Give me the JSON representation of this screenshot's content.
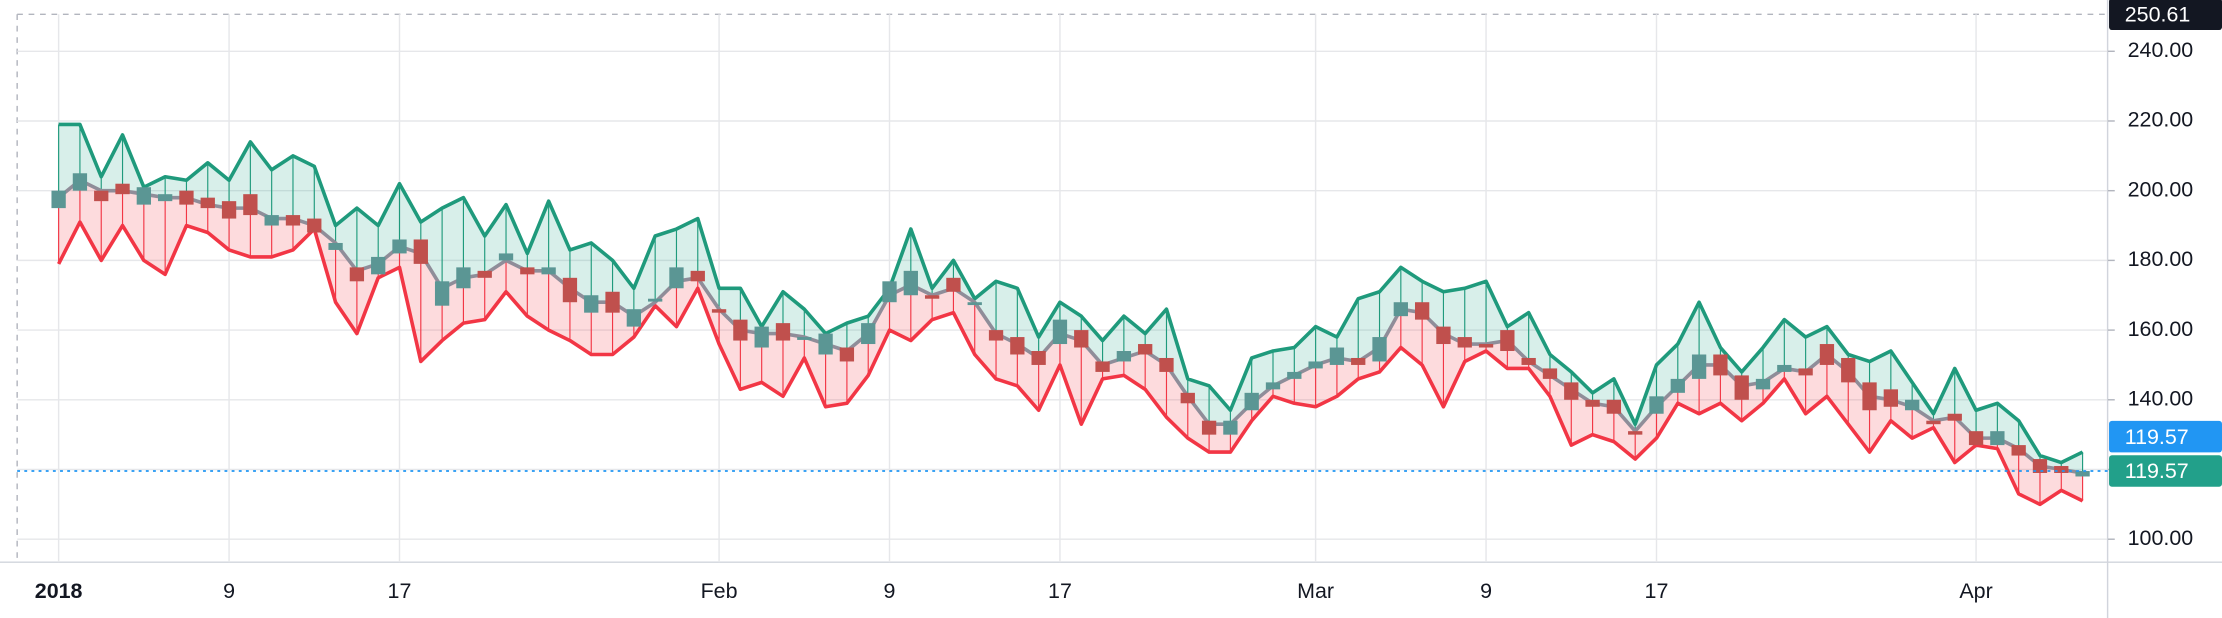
{
  "chart_data": {
    "type": "candlestick",
    "categories": [
      "2018",
      null,
      null,
      null,
      null,
      null,
      null,
      null,
      "9",
      null,
      null,
      null,
      null,
      null,
      null,
      null,
      "17",
      null,
      null,
      null,
      null,
      null,
      null,
      null,
      null,
      null,
      null,
      null,
      null,
      null,
      null,
      "Feb",
      null,
      null,
      null,
      null,
      null,
      null,
      null,
      "9",
      null,
      null,
      null,
      null,
      null,
      null,
      null,
      "17",
      null,
      null,
      null,
      null,
      null,
      null,
      null,
      null,
      null,
      null,
      null,
      "Mar",
      null,
      null,
      null,
      null,
      null,
      null,
      null,
      "9",
      null,
      null,
      null,
      null,
      null,
      null,
      null,
      "17",
      null,
      null,
      null,
      null,
      null,
      null,
      null,
      null,
      null,
      null,
      null,
      null,
      null,
      null,
      "Apr",
      null,
      null,
      null,
      null,
      null
    ],
    "open": [
      195,
      200,
      200,
      202,
      196,
      197,
      200,
      198,
      197,
      199,
      190,
      193,
      192,
      183,
      178,
      176,
      182,
      186,
      167,
      172,
      177,
      180,
      178,
      176,
      175,
      165,
      171,
      161,
      169,
      172,
      177,
      166,
      163,
      155,
      162,
      158,
      153,
      155,
      156,
      168,
      170,
      170,
      175,
      168,
      160,
      158,
      154,
      156,
      160,
      151,
      151,
      156,
      152,
      142,
      134,
      130,
      137,
      143,
      146,
      149,
      150,
      152,
      151,
      164,
      168,
      161,
      158,
      156,
      160,
      152,
      149,
      145,
      140,
      140,
      131,
      136,
      142,
      146,
      153,
      147,
      143,
      148,
      149,
      156,
      152,
      145,
      143,
      137,
      134,
      136,
      131,
      127,
      127,
      123,
      121,
      118
    ],
    "close": [
      200,
      205,
      197,
      199,
      201,
      199,
      196,
      195,
      192,
      193,
      193,
      190,
      188,
      185,
      174,
      181,
      186,
      179,
      174,
      178,
      175,
      182,
      176,
      178,
      168,
      170,
      165,
      166,
      169,
      178,
      174,
      165,
      157,
      161,
      157,
      158,
      159,
      151,
      162,
      174,
      177,
      169,
      171,
      168,
      157,
      153,
      150,
      163,
      155,
      148,
      154,
      153,
      148,
      139,
      130,
      134,
      142,
      145,
      148,
      151,
      155,
      150,
      158,
      168,
      163,
      156,
      155,
      155,
      154,
      150,
      146,
      140,
      138,
      136,
      130,
      141,
      146,
      153,
      147,
      140,
      146,
      150,
      147,
      150,
      145,
      137,
      138,
      140,
      133,
      134,
      127,
      131,
      124,
      119,
      119,
      119.57
    ],
    "up_color": "#5b9694",
    "down_color": "#c0504d",
    "series": [
      {
        "color": "#1f9a7c",
        "fill": "rgba(38,166,140,0.18)",
        "values": [
          219,
          219,
          204,
          216,
          201,
          204,
          203,
          208,
          203,
          214,
          206,
          210,
          207,
          190,
          195,
          190,
          202,
          191,
          195,
          198,
          187,
          196,
          182,
          197,
          183,
          185,
          180,
          172,
          187,
          189,
          192,
          172,
          172,
          161,
          171,
          166,
          159,
          162,
          164,
          172,
          189,
          172,
          180,
          169,
          174,
          172,
          158,
          168,
          164,
          157,
          164,
          159,
          166,
          146,
          144,
          137,
          152,
          154,
          155,
          161,
          158,
          169,
          171,
          178,
          174,
          171,
          172,
          174,
          161,
          165,
          153,
          148,
          142,
          146,
          133,
          150,
          156,
          168,
          155,
          148,
          155,
          163,
          158,
          161,
          153,
          151,
          154,
          145,
          136,
          149,
          137,
          139,
          134,
          124,
          122,
          125
        ]
      },
      {
        "color": "#f23645",
        "fill": "rgba(242,54,69,0.18)",
        "values": [
          179,
          191,
          180,
          190,
          180,
          176,
          190,
          188,
          183,
          181,
          181,
          183,
          189,
          168,
          159,
          175,
          178,
          151,
          157,
          162,
          163,
          171,
          164,
          160,
          157,
          153,
          153,
          158,
          167,
          161,
          172,
          156,
          143,
          145,
          141,
          152,
          138,
          139,
          147,
          160,
          157,
          163,
          165,
          153,
          146,
          144,
          137,
          150,
          133,
          146,
          147,
          143,
          135,
          129,
          125,
          125,
          134,
          141,
          139,
          138,
          141,
          146,
          148,
          155,
          150,
          138,
          151,
          154,
          149,
          149,
          141,
          127,
          130,
          128,
          123,
          129,
          139,
          136,
          139,
          134,
          139,
          146,
          136,
          141,
          133,
          125,
          134,
          129,
          132,
          122,
          127,
          126,
          113,
          110,
          114,
          111
        ]
      },
      {
        "color": "#8f8d99",
        "values": [
          198,
          203,
          200,
          200,
          199,
          198,
          198,
          196,
          195,
          195,
          192,
          192,
          190,
          185,
          177,
          179,
          184,
          182,
          172,
          175,
          176,
          180,
          177,
          177,
          172,
          168,
          168,
          164,
          168,
          174,
          175,
          166,
          160,
          159,
          159,
          158,
          156,
          154,
          159,
          170,
          173,
          170,
          172,
          168,
          159,
          156,
          152,
          159,
          157,
          150,
          152,
          154,
          150,
          141,
          133,
          133,
          139,
          144,
          147,
          150,
          152,
          151,
          155,
          166,
          165,
          159,
          156,
          156,
          157,
          151,
          147,
          143,
          139,
          138,
          131,
          138,
          144,
          150,
          150,
          144,
          145,
          149,
          148,
          153,
          148,
          141,
          140,
          138,
          134,
          135,
          129,
          129,
          126,
          121,
          120,
          119
        ]
      }
    ],
    "ylim": [
      93.4,
      250.61
    ],
    "yticks": [
      {
        "value": 100,
        "label": "100.00"
      },
      {
        "value": 120,
        "label": "120.00"
      },
      {
        "value": 140,
        "label": "140.00"
      },
      {
        "value": 160,
        "label": "160.00"
      },
      {
        "value": 180,
        "label": "180.00"
      },
      {
        "value": 200,
        "label": "200.00"
      },
      {
        "value": 220,
        "label": "220.00"
      },
      {
        "value": 240,
        "label": "240.00"
      }
    ],
    "grid": true,
    "last_price": 119.57,
    "last_price_colors": [
      "#2196f3",
      "#22a08a"
    ]
  }
}
